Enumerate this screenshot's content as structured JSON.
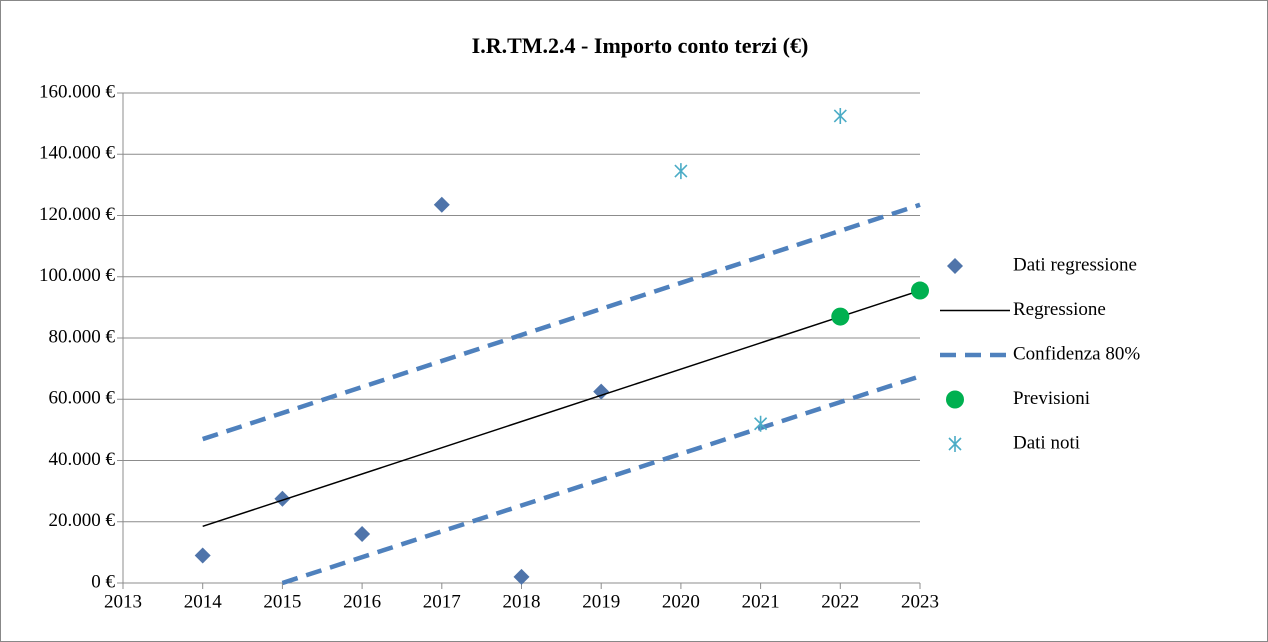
{
  "chart_data": {
    "type": "scatter",
    "title": "I.R.TM.2.4 - Importo conto terzi (€)",
    "xlim": [
      2013,
      2023
    ],
    "xticks": [
      2013,
      2014,
      2015,
      2016,
      2017,
      2018,
      2019,
      2020,
      2021,
      2022,
      2023
    ],
    "ylim": [
      0,
      160000
    ],
    "yticks": [
      {
        "value": 0,
        "label": "0 €"
      },
      {
        "value": 20000,
        "label": "20.000 €"
      },
      {
        "value": 40000,
        "label": "40.000 €"
      },
      {
        "value": 60000,
        "label": "60.000 €"
      },
      {
        "value": 80000,
        "label": "80.000 €"
      },
      {
        "value": 100000,
        "label": "100.000 €"
      },
      {
        "value": 120000,
        "label": "120.000 €"
      },
      {
        "value": 140000,
        "label": "140.000 €"
      },
      {
        "value": 160000,
        "label": "160.000 €"
      }
    ],
    "grid": true,
    "legend": "right",
    "series": [
      {
        "name": "Dati regressione",
        "color": "#4f74aa",
        "marker": "diamond",
        "x": [
          2014,
          2015,
          2016,
          2017,
          2018,
          2019
        ],
        "values": [
          9000,
          27500,
          16000,
          123500,
          2000,
          62500
        ]
      },
      {
        "name": "Regressione",
        "color": "#000000",
        "line": "solid",
        "x": [
          2014,
          2023
        ],
        "values": [
          18500,
          95500
        ]
      },
      {
        "name": "Confidenza 80%",
        "color": "#4f81bd",
        "line": "dashed",
        "x": [
          2014,
          2023,
          null,
          2015,
          2023
        ],
        "values": [
          47000,
          123500,
          null,
          0,
          67500
        ]
      },
      {
        "name": "Previsioni",
        "color": "#00b050",
        "marker": "circle",
        "x": [
          2022,
          2023
        ],
        "values": [
          87000,
          95500
        ]
      },
      {
        "name": "Dati noti",
        "color": "#4bacc6",
        "marker": "asterisk",
        "x": [
          2020,
          2021,
          2022
        ],
        "values": [
          134500,
          52000,
          152500
        ]
      }
    ]
  }
}
